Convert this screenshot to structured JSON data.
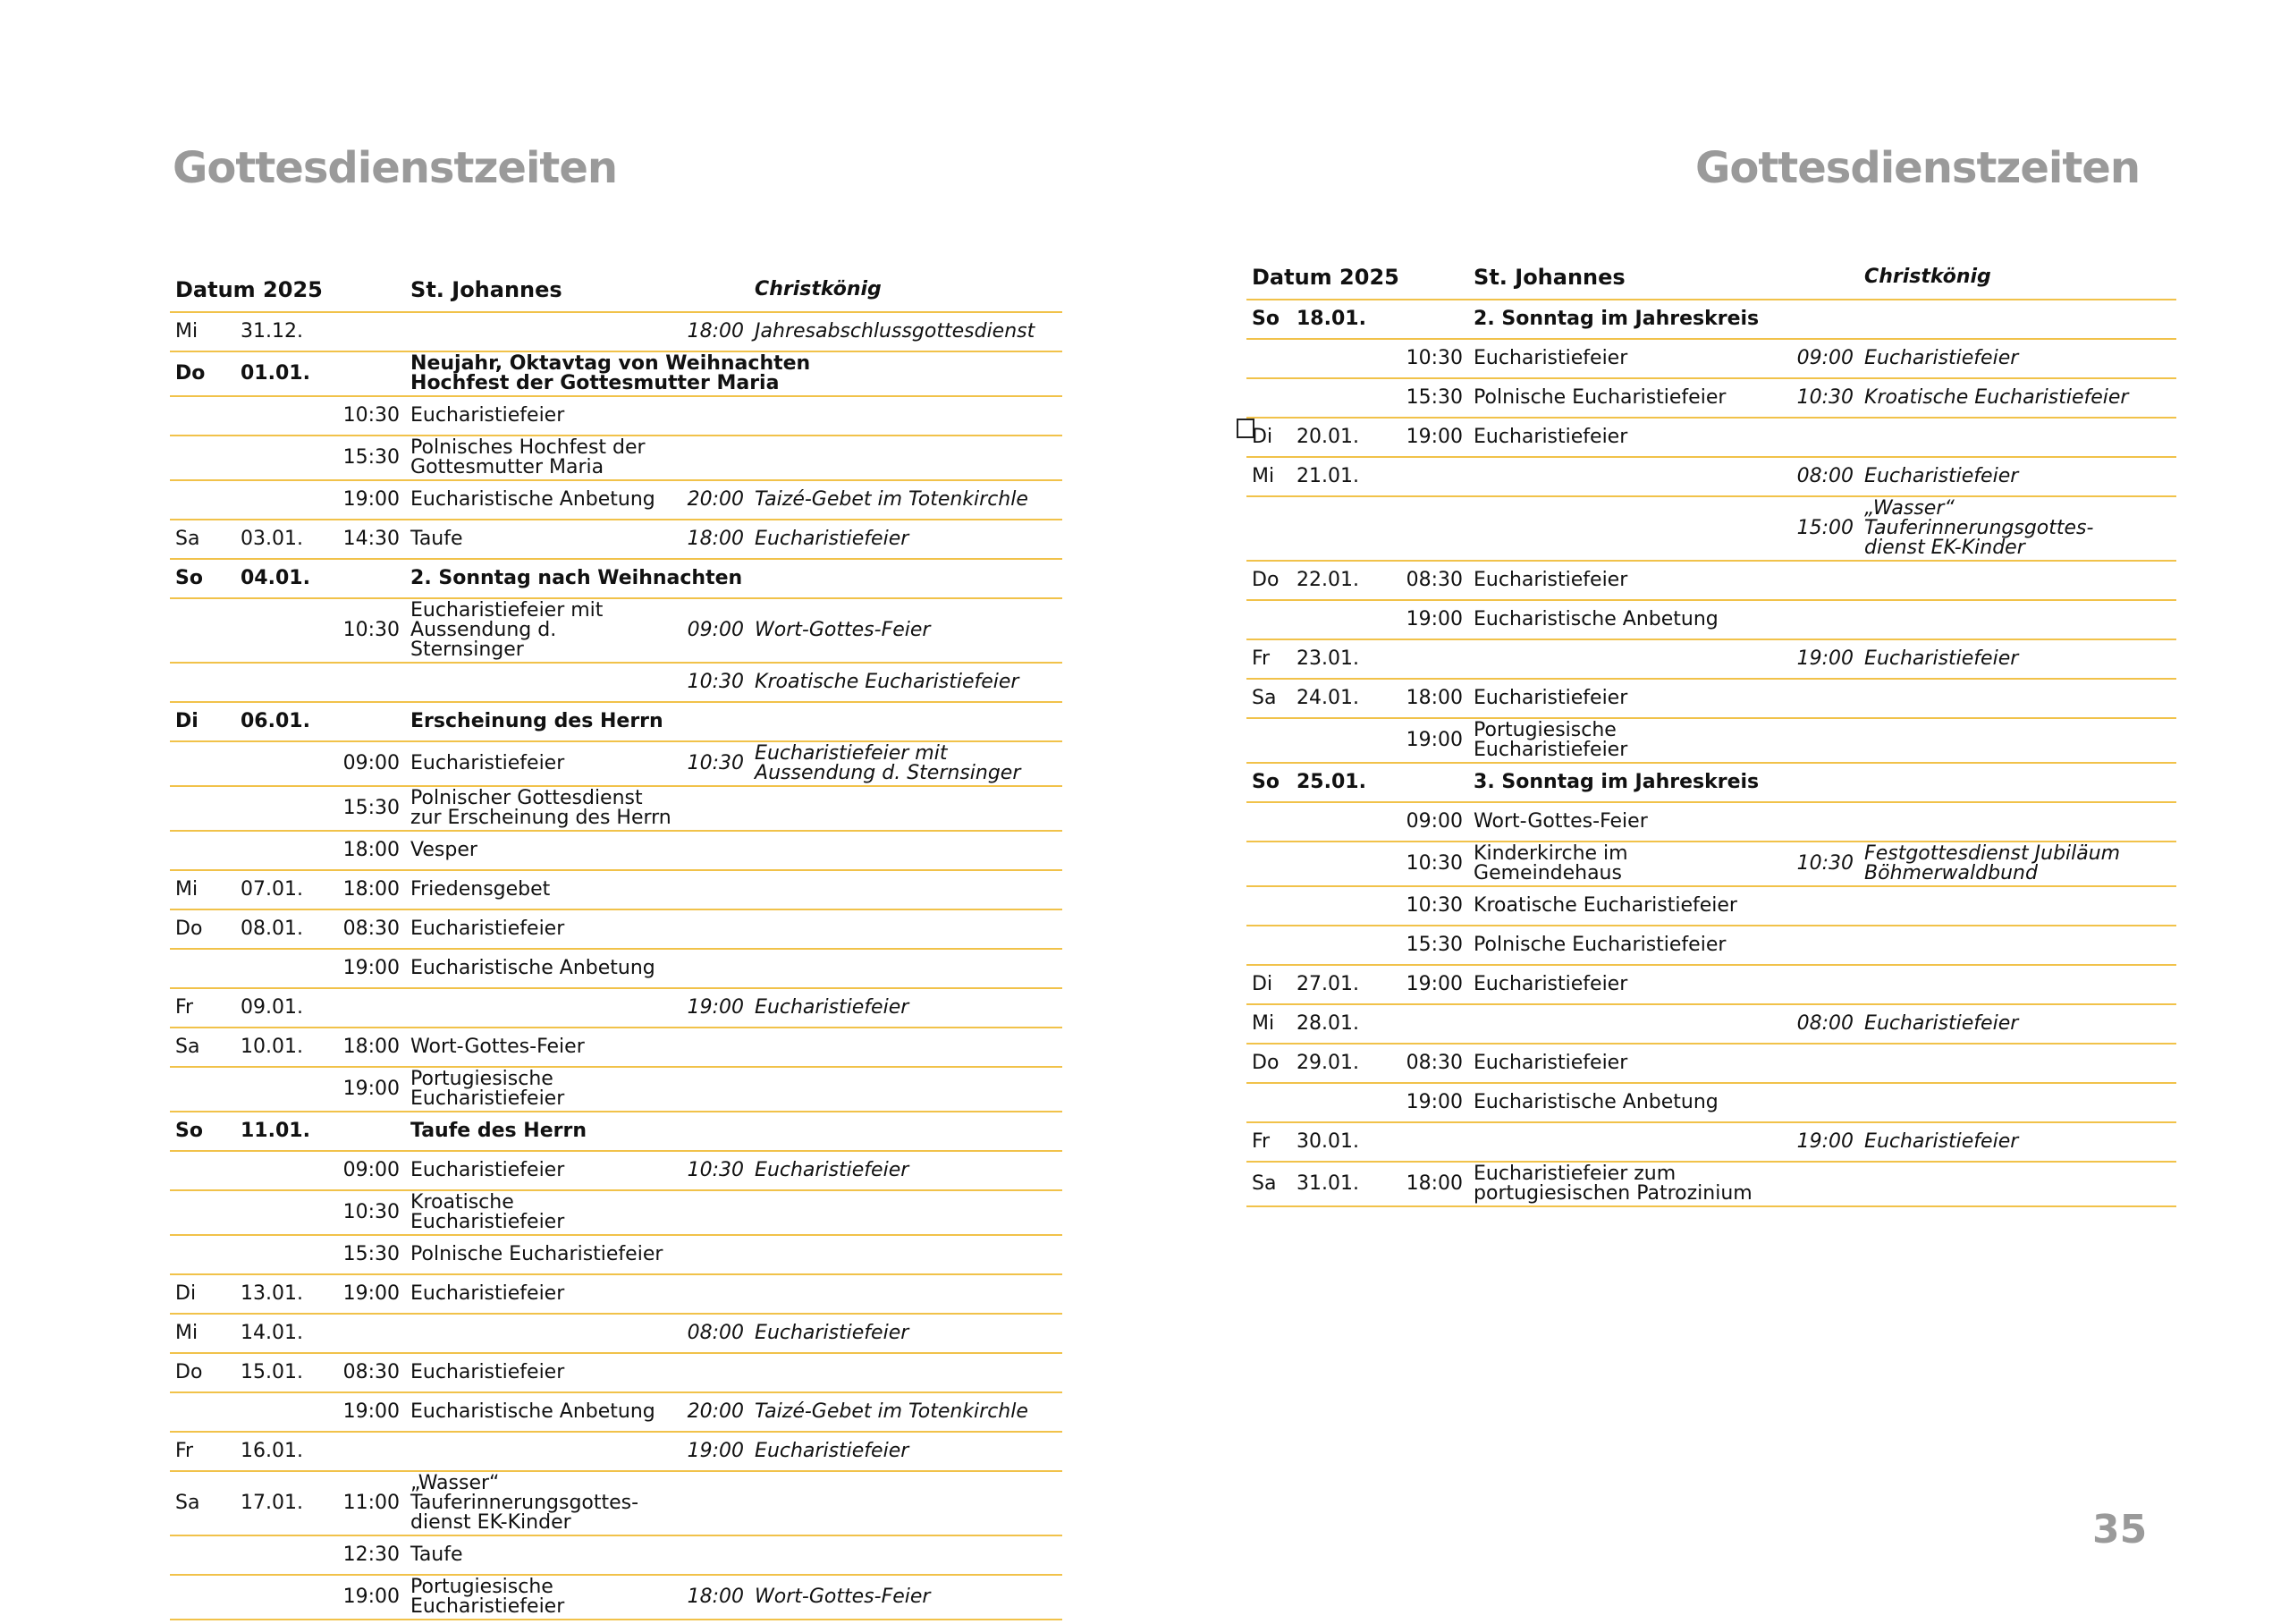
{
  "left": {
    "title": "Gottesdienstzeiten",
    "table": {
      "header": {
        "date": "Datum 2025",
        "col1": "St. Johannes",
        "col2": "Christkönig"
      },
      "rows": [
        {
          "day": "Mi",
          "date": "31.12.",
          "time2": "18:00",
          "event2": "Jahresabschlussgottesdienst"
        },
        {
          "day": "Do",
          "date": "01.01.",
          "event": "Neujahr, Oktavtag von Weihnachten\nHochfest der Gottesmutter Maria",
          "bold": true
        },
        {
          "time": "10:30",
          "event": "Eucharistiefeier"
        },
        {
          "time": "15:30",
          "event": "Polnisches Hochfest der\nGottesmutter Maria"
        },
        {
          "time": "19:00",
          "event": "Eucharistische Anbetung",
          "time2": "20:00",
          "event2": "Taizé-Gebet im Totenkirchle"
        },
        {
          "day": "Sa",
          "date": "03.01.",
          "time": "14:30",
          "event": "Taufe",
          "time2": "18:00",
          "event2": "Eucharistiefeier"
        },
        {
          "day": "So",
          "date": "04.01.",
          "event": "2. Sonntag nach Weihnachten",
          "bold": true
        },
        {
          "time": "10:30",
          "event": "Eucharistiefeier mit\nAussendung d. Sternsinger",
          "time2": "09:00",
          "event2": "Wort-Gottes-Feier"
        },
        {
          "time2": "10:30",
          "event2": "Kroatische  Eucharistiefeier"
        },
        {
          "day": "Di",
          "date": "06.01.",
          "event": "Erscheinung des Herrn",
          "bold": true
        },
        {
          "time": "09:00",
          "event": "Eucharistiefeier",
          "time2": "10:30",
          "event2": "Eucharistiefeier mit\nAussendung d. Sternsinger"
        },
        {
          "time": "15:30",
          "event": "Polnischer Gottesdienst\nzur Erscheinung des Herrn"
        },
        {
          "time": "18:00",
          "event": "Vesper"
        },
        {
          "day": "Mi",
          "date": "07.01.",
          "time": "18:00",
          "event": "Friedensgebet"
        },
        {
          "day": "Do",
          "date": "08.01.",
          "time": "08:30",
          "event": "Eucharistiefeier"
        },
        {
          "time": "19:00",
          "event": "Eucharistische Anbetung"
        },
        {
          "day": "Fr",
          "date": "09.01.",
          "time2": "19:00",
          "event2": "Eucharistiefeier"
        },
        {
          "day": "Sa",
          "date": "10.01.",
          "time": "18:00",
          "event": "Wort-Gottes-Feier"
        },
        {
          "time": "19:00",
          "event": "Portugiesische\nEucharistiefeier"
        },
        {
          "day": "So",
          "date": "11.01.",
          "event": "Taufe des Herrn",
          "bold": true
        },
        {
          "time": "09:00",
          "event": "Eucharistiefeier",
          "time2": "10:30",
          "event2": "Eucharistiefeier"
        },
        {
          "time": "10:30",
          "event": "Kroatische Eucharistiefeier"
        },
        {
          "time": "15:30",
          "event": "Polnische Eucharistiefeier"
        },
        {
          "day": "Di",
          "date": "13.01.",
          "time": "19:00",
          "event": "Eucharistiefeier"
        },
        {
          "day": "Mi",
          "date": "14.01.",
          "time2": "08:00",
          "event2": "Eucharistiefeier"
        },
        {
          "day": "Do",
          "date": "15.01.",
          "time": "08:30",
          "event": "Eucharistiefeier"
        },
        {
          "time": "19:00",
          "event": "Eucharistische Anbetung",
          "time2": "20:00",
          "event2": "Taizé-Gebet im Totenkirchle"
        },
        {
          "day": "Fr",
          "date": "16.01.",
          "time2": "19:00",
          "event2": "Eucharistiefeier"
        },
        {
          "day": "Sa",
          "date": "17.01.",
          "time": "11:00",
          "event": "„Wasser“\nTauferinnerungsgottes-\ndienst EK-Kinder"
        },
        {
          "time": "12:30",
          "event": "Taufe"
        },
        {
          "time": "19:00",
          "event": "Portugiesische\nEucharistiefeier",
          "time2": "18:00",
          "event2": "Wort-Gottes-Feier"
        }
      ]
    }
  },
  "right": {
    "title": "Gottesdienstzeiten",
    "page_number": "35",
    "table": {
      "header": {
        "date": "Datum 2025",
        "col1": "St. Johannes",
        "col2": "Christkönig"
      },
      "rows": [
        {
          "day": "So",
          "date": "18.01.",
          "event": "2. Sonntag im Jahreskreis",
          "bold": true
        },
        {
          "time": "10:30",
          "event": "Eucharistiefeier",
          "time2": "09:00",
          "event2": "Eucharistiefeier"
        },
        {
          "time": "15:30",
          "event": "Polnische Eucharistiefeier",
          "time2": "10:30",
          "event2": "Kroatische Eucharistiefeier"
        },
        {
          "day": "Di",
          "date": "20.01.",
          "time": "19:00",
          "event": "Eucharistiefeier"
        },
        {
          "day": "Mi",
          "date": "21.01.",
          "time2": "08:00",
          "event2": "Eucharistiefeier"
        },
        {
          "time2": "15:00",
          "event2": "„Wasser“\nTauferinnerungsgottes-\ndienst EK-Kinder"
        },
        {
          "day": "Do",
          "date": "22.01.",
          "time": "08:30",
          "event": "Eucharistiefeier"
        },
        {
          "time": "19:00",
          "event": "Eucharistische Anbetung"
        },
        {
          "day": "Fr",
          "date": "23.01.",
          "time2": "19:00",
          "event2": "Eucharistiefeier"
        },
        {
          "day": "Sa",
          "date": "24.01.",
          "time": "18:00",
          "event": "Eucharistiefeier"
        },
        {
          "time": "19:00",
          "event": "Portugiesische Eucharistiefeier"
        },
        {
          "day": "So",
          "date": "25.01.",
          "event": "3. Sonntag im Jahreskreis",
          "bold": true
        },
        {
          "time": "09:00",
          "event": "Wort-Gottes-Feier"
        },
        {
          "time": "10:30",
          "event": "Kinderkirche im\nGemeindehaus",
          "time2": "10:30",
          "event2": "Festgottesdienst Jubiläum\nBöhmerwaldbund"
        },
        {
          "time": "10:30",
          "event": "Kroatische Eucharistiefeier"
        },
        {
          "time": "15:30",
          "event": "Polnische Eucharistiefeier"
        },
        {
          "day": "Di",
          "date": "27.01.",
          "time": "19:00",
          "event": "Eucharistiefeier"
        },
        {
          "day": "Mi",
          "date": "28.01.",
          "time2": "08:00",
          "event2": "Eucharistiefeier"
        },
        {
          "day": "Do",
          "date": "29.01.",
          "time": "08:30",
          "event": "Eucharistiefeier"
        },
        {
          "time": "19:00",
          "event": "Eucharistische Anbetung"
        },
        {
          "day": "Fr",
          "date": "30.01.",
          "time2": "19:00",
          "event2": "Eucharistiefeier"
        },
        {
          "day": "Sa",
          "date": "31.01.",
          "time": "18:00",
          "event": "Eucharistiefeier zum\nportugiesischen Patrozinium"
        }
      ]
    }
  }
}
